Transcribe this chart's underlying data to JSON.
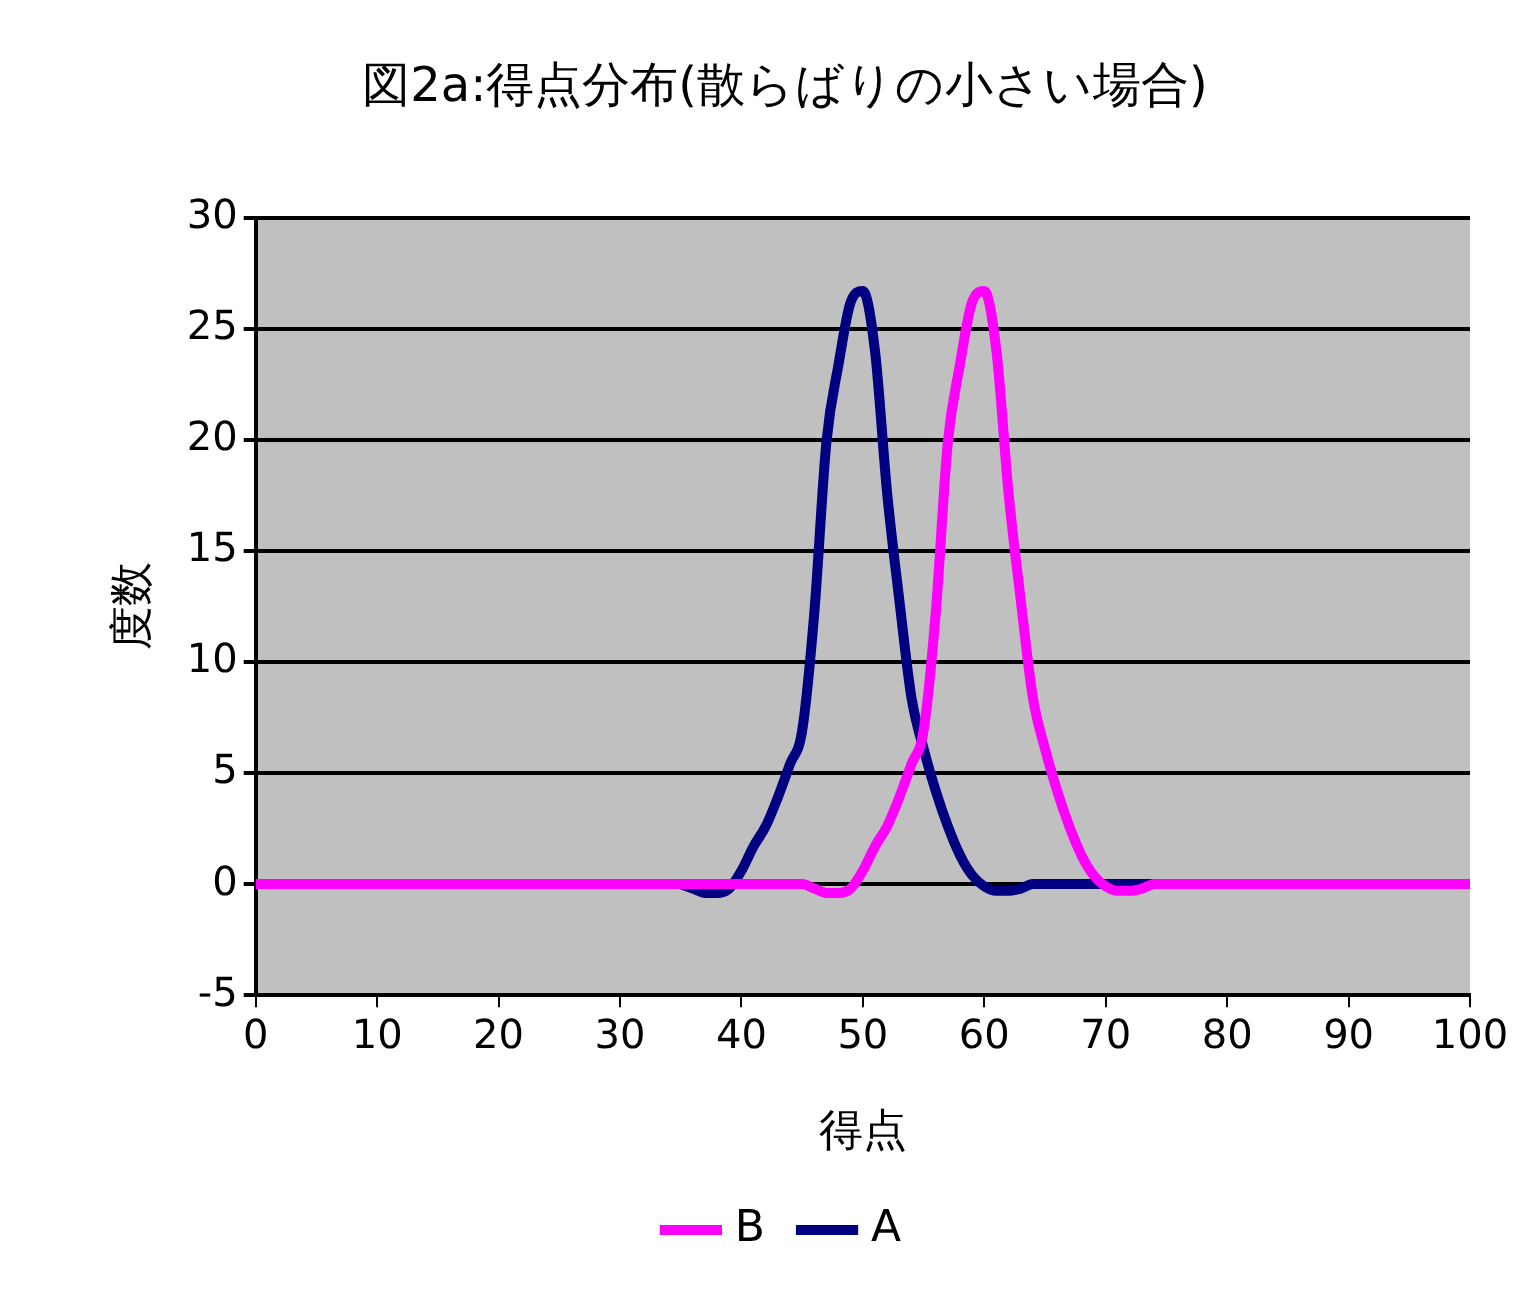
{
  "chart_data": {
    "type": "line",
    "title": "図2a:得点分布(散らばりの小さい場合)",
    "xlabel": "得点",
    "ylabel": "度数",
    "x": [
      0,
      5,
      10,
      15,
      20,
      25,
      30,
      35,
      36,
      37,
      38,
      39,
      40,
      41,
      42,
      43,
      44,
      45,
      46,
      47,
      48,
      49,
      50,
      51,
      52,
      53,
      54,
      55,
      56,
      57,
      58,
      59,
      60,
      61,
      62,
      63,
      64,
      65,
      66,
      67,
      68,
      69,
      70,
      71,
      72,
      73,
      74,
      75,
      80,
      85,
      90,
      95,
      100
    ],
    "series": [
      {
        "name": "A",
        "color": "#000080",
        "values": [
          null,
          null,
          null,
          null,
          null,
          null,
          null,
          0,
          -0.2,
          -0.4,
          -0.4,
          -0.2,
          0.6,
          1.7,
          2.6,
          3.9,
          5.4,
          6.9,
          12.2,
          19.9,
          23.4,
          26.2,
          26.7,
          24,
          17.6,
          12.8,
          8.4,
          6.1,
          4.2,
          2.6,
          1.3,
          0.4,
          -0.1,
          -0.3,
          -0.3,
          -0.2,
          0,
          0,
          0,
          0,
          0,
          0,
          0,
          0,
          0,
          0,
          0,
          null,
          null,
          null,
          null,
          null,
          null
        ]
      },
      {
        "name": "B",
        "color": "#ff00ff",
        "values": [
          0,
          0,
          0,
          0,
          0,
          0,
          0,
          0,
          0,
          0,
          0,
          0,
          0,
          0,
          0,
          0,
          0,
          0,
          -0.2,
          -0.4,
          -0.4,
          -0.2,
          0.6,
          1.7,
          2.6,
          3.9,
          5.4,
          6.9,
          12.2,
          19.9,
          23.4,
          26.2,
          26.7,
          24,
          17.6,
          12.8,
          8.4,
          6.1,
          4.2,
          2.6,
          1.3,
          0.4,
          -0.1,
          -0.3,
          -0.3,
          -0.2,
          0,
          0,
          0,
          0,
          0,
          0,
          0
        ]
      }
    ],
    "xlim": [
      0,
      100
    ],
    "xticks": [
      0,
      10,
      20,
      30,
      40,
      50,
      60,
      70,
      80,
      90,
      100
    ],
    "ylim": [
      -5,
      30
    ],
    "yticks": [
      -5,
      0,
      5,
      10,
      15,
      20,
      25,
      30
    ],
    "grid": "y",
    "legend": "bottom",
    "marker": "none",
    "line_style": "solid"
  }
}
